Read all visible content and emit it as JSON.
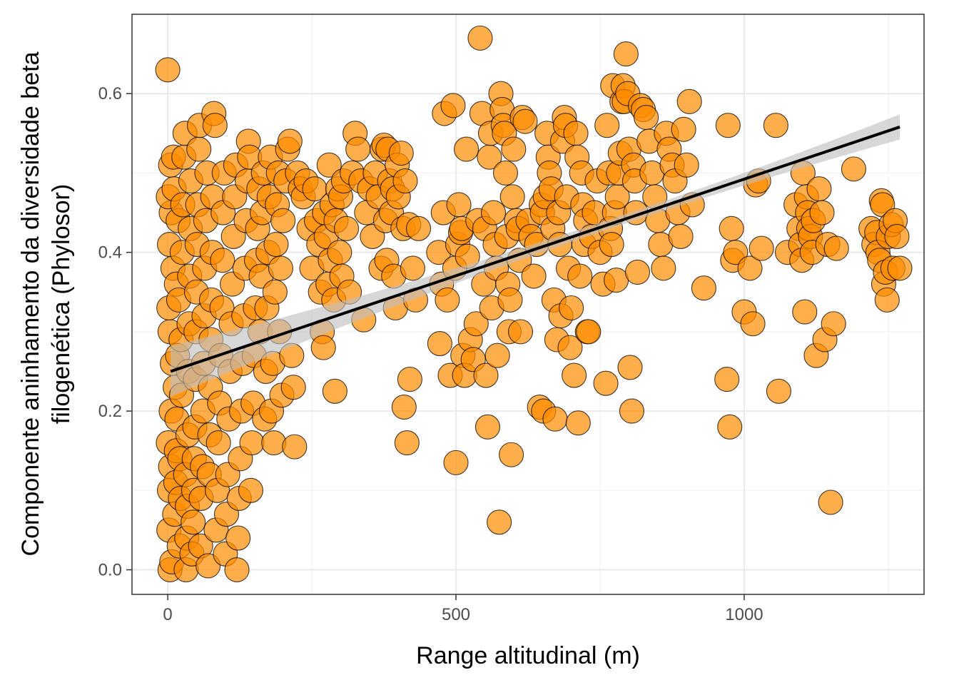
{
  "chart_data": {
    "type": "scatter",
    "title": "",
    "xlabel": "Range altitudinal (m)",
    "ylabel_lines": [
      "Componente aninhamento da diversidade beta",
      "filogenética (Phylosor)"
    ],
    "xlim": [
      -62,
      1312
    ],
    "ylim": [
      -0.031,
      0.7
    ],
    "x_ticks": [
      0,
      500,
      1000
    ],
    "x_tick_labels": [
      "0",
      "500",
      "1000"
    ],
    "y_ticks": [
      0.0,
      0.2,
      0.4,
      0.6
    ],
    "y_tick_labels": [
      "0.0",
      "0.2",
      "0.4",
      "0.6"
    ],
    "grid": true,
    "legend": "none",
    "point_color": "#FF8C00",
    "point_stroke": "#000000",
    "fit_color": "#000000",
    "ci_color": "#bebebe",
    "fit_line": {
      "x": [
        5,
        1270
      ],
      "y": [
        0.25,
        0.558
      ],
      "ci_halfwidth": [
        0.006,
        0.023
      ]
    },
    "points_note_free": true,
    "points": [
      [
        0,
        0.63
      ],
      [
        4,
        0.0
      ],
      [
        7,
        0.01
      ],
      [
        2,
        0.05
      ],
      [
        3,
        0.1
      ],
      [
        1,
        0.16
      ],
      [
        5,
        0.13
      ],
      [
        6,
        0.2
      ],
      [
        8,
        0.26
      ],
      [
        4,
        0.3
      ],
      [
        2,
        0.33
      ],
      [
        9,
        0.38
      ],
      [
        3,
        0.41
      ],
      [
        6,
        0.45
      ],
      [
        1,
        0.47
      ],
      [
        5,
        0.51
      ],
      [
        10,
        0.52
      ],
      [
        12,
        0.07
      ],
      [
        14,
        0.11
      ],
      [
        15,
        0.15
      ],
      [
        16,
        0.19
      ],
      [
        13,
        0.23
      ],
      [
        17,
        0.27
      ],
      [
        15,
        0.36
      ],
      [
        18,
        0.44
      ],
      [
        11,
        0.48
      ],
      [
        20,
        0.03
      ],
      [
        22,
        0.09
      ],
      [
        21,
        0.14
      ],
      [
        24,
        0.22
      ],
      [
        23,
        0.29
      ],
      [
        19,
        0.34
      ],
      [
        25,
        0.4
      ],
      [
        26,
        0.46
      ],
      [
        28,
        0.52
      ],
      [
        30,
        0.55
      ],
      [
        32,
        0.0
      ],
      [
        33,
        0.04
      ],
      [
        34,
        0.08
      ],
      [
        31,
        0.12
      ],
      [
        35,
        0.17
      ],
      [
        36,
        0.25
      ],
      [
        37,
        0.31
      ],
      [
        38,
        0.37
      ],
      [
        39,
        0.43
      ],
      [
        40,
        0.49
      ],
      [
        42,
        0.02
      ],
      [
        44,
        0.06
      ],
      [
        45,
        0.1
      ],
      [
        46,
        0.14
      ],
      [
        47,
        0.18
      ],
      [
        48,
        0.24
      ],
      [
        49,
        0.3
      ],
      [
        50,
        0.35
      ],
      [
        51,
        0.41
      ],
      [
        52,
        0.46
      ],
      [
        54,
        0.53
      ],
      [
        55,
        0.56
      ],
      [
        57,
        0.03
      ],
      [
        58,
        0.09
      ],
      [
        60,
        0.13
      ],
      [
        61,
        0.2
      ],
      [
        62,
        0.26
      ],
      [
        63,
        0.32
      ],
      [
        64,
        0.38
      ],
      [
        66,
        0.44
      ],
      [
        68,
        0.5
      ],
      [
        70,
        0.005
      ],
      [
        72,
        0.12
      ],
      [
        73,
        0.17
      ],
      [
        74,
        0.23
      ],
      [
        75,
        0.29
      ],
      [
        76,
        0.34
      ],
      [
        77,
        0.4
      ],
      [
        78,
        0.47
      ],
      [
        80,
        0.575
      ],
      [
        82,
        0.56
      ],
      [
        84,
        0.05
      ],
      [
        86,
        0.1
      ],
      [
        88,
        0.16
      ],
      [
        90,
        0.21
      ],
      [
        92,
        0.27
      ],
      [
        94,
        0.33
      ],
      [
        95,
        0.39
      ],
      [
        96,
        0.45
      ],
      [
        98,
        0.5
      ],
      [
        100,
        0.02
      ],
      [
        102,
        0.07
      ],
      [
        104,
        0.12
      ],
      [
        106,
        0.19
      ],
      [
        108,
        0.25
      ],
      [
        110,
        0.31
      ],
      [
        112,
        0.36
      ],
      [
        114,
        0.42
      ],
      [
        116,
        0.47
      ],
      [
        118,
        0.51
      ],
      [
        120,
        0.0
      ],
      [
        122,
        0.04
      ],
      [
        124,
        0.09
      ],
      [
        126,
        0.14
      ],
      [
        128,
        0.2
      ],
      [
        130,
        0.26
      ],
      [
        132,
        0.32
      ],
      [
        134,
        0.38
      ],
      [
        136,
        0.44
      ],
      [
        138,
        0.49
      ],
      [
        140,
        0.54
      ],
      [
        142,
        0.52
      ],
      [
        144,
        0.1
      ],
      [
        146,
        0.16
      ],
      [
        148,
        0.21
      ],
      [
        150,
        0.27
      ],
      [
        152,
        0.33
      ],
      [
        154,
        0.39
      ],
      [
        156,
        0.43
      ],
      [
        158,
        0.48
      ],
      [
        160,
        0.3
      ],
      [
        162,
        0.37
      ],
      [
        164,
        0.45
      ],
      [
        166,
        0.5
      ],
      [
        168,
        0.19
      ],
      [
        170,
        0.25
      ],
      [
        172,
        0.33
      ],
      [
        174,
        0.4
      ],
      [
        176,
        0.47
      ],
      [
        178,
        0.52
      ],
      [
        180,
        0.2
      ],
      [
        182,
        0.26
      ],
      [
        184,
        0.16
      ],
      [
        186,
        0.35
      ],
      [
        188,
        0.41
      ],
      [
        190,
        0.46
      ],
      [
        192,
        0.5
      ],
      [
        194,
        0.3
      ],
      [
        196,
        0.38
      ],
      [
        198,
        0.22
      ],
      [
        200,
        0.44
      ],
      [
        205,
        0.49
      ],
      [
        208,
        0.53
      ],
      [
        212,
        0.54
      ],
      [
        215,
        0.27
      ],
      [
        218,
        0.23
      ],
      [
        220,
        0.155
      ],
      [
        225,
        0.5
      ],
      [
        230,
        0.48
      ],
      [
        235,
        0.47
      ],
      [
        240,
        0.49
      ],
      [
        245,
        0.43
      ],
      [
        250,
        0.38
      ],
      [
        255,
        0.48
      ],
      [
        258,
        0.44
      ],
      [
        262,
        0.41
      ],
      [
        265,
        0.35
      ],
      [
        268,
        0.3
      ],
      [
        270,
        0.28
      ],
      [
        272,
        0.45
      ],
      [
        275,
        0.42
      ],
      [
        278,
        0.36
      ],
      [
        280,
        0.51
      ],
      [
        282,
        0.39
      ],
      [
        285,
        0.46
      ],
      [
        288,
        0.34
      ],
      [
        290,
        0.225
      ],
      [
        292,
        0.44
      ],
      [
        295,
        0.48
      ],
      [
        298,
        0.4
      ],
      [
        300,
        0.47
      ],
      [
        302,
        0.37
      ],
      [
        305,
        0.49
      ],
      [
        310,
        0.43
      ],
      [
        315,
        0.35
      ],
      [
        320,
        0.5
      ],
      [
        325,
        0.55
      ],
      [
        330,
        0.53
      ],
      [
        335,
        0.49
      ],
      [
        340,
        0.315
      ],
      [
        345,
        0.45
      ],
      [
        350,
        0.48
      ],
      [
        355,
        0.42
      ],
      [
        360,
        0.5
      ],
      [
        365,
        0.47
      ],
      [
        370,
        0.38
      ],
      [
        372,
        0.53
      ],
      [
        375,
        0.535
      ],
      [
        378,
        0.44
      ],
      [
        380,
        0.39
      ],
      [
        382,
        0.53
      ],
      [
        385,
        0.49
      ],
      [
        388,
        0.45
      ],
      [
        390,
        0.48
      ],
      [
        392,
        0.37
      ],
      [
        395,
        0.33
      ],
      [
        398,
        0.51
      ],
      [
        400,
        0.47
      ],
      [
        405,
        0.525
      ],
      [
        408,
        0.43
      ],
      [
        410,
        0.205
      ],
      [
        412,
        0.49
      ],
      [
        415,
        0.16
      ],
      [
        418,
        0.435
      ],
      [
        420,
        0.24
      ],
      [
        425,
        0.38
      ],
      [
        430,
        0.34
      ],
      [
        435,
        0.43
      ],
      [
        470,
        0.4
      ],
      [
        472,
        0.285
      ],
      [
        475,
        0.36
      ],
      [
        478,
        0.45
      ],
      [
        480,
        0.575
      ],
      [
        485,
        0.34
      ],
      [
        490,
        0.245
      ],
      [
        495,
        0.585
      ],
      [
        498,
        0.38
      ],
      [
        500,
        0.135
      ],
      [
        503,
        0.41
      ],
      [
        505,
        0.46
      ],
      [
        508,
        0.425
      ],
      [
        510,
        0.43
      ],
      [
        512,
        0.27
      ],
      [
        515,
        0.245
      ],
      [
        518,
        0.53
      ],
      [
        520,
        0.395
      ],
      [
        525,
        0.29
      ],
      [
        530,
        0.265
      ],
      [
        535,
        0.31
      ],
      [
        538,
        0.44
      ],
      [
        542,
        0.67
      ],
      [
        545,
        0.575
      ],
      [
        548,
        0.36
      ],
      [
        550,
        0.43
      ],
      [
        552,
        0.245
      ],
      [
        555,
        0.18
      ],
      [
        558,
        0.52
      ],
      [
        560,
        0.55
      ],
      [
        562,
        0.33
      ],
      [
        565,
        0.45
      ],
      [
        568,
        0.41
      ],
      [
        570,
        0.38
      ],
      [
        572,
        0.27
      ],
      [
        575,
        0.06
      ],
      [
        578,
        0.6
      ],
      [
        580,
        0.58
      ],
      [
        582,
        0.56
      ],
      [
        584,
        0.55
      ],
      [
        586,
        0.5
      ],
      [
        588,
        0.42
      ],
      [
        590,
        0.36
      ],
      [
        592,
        0.3
      ],
      [
        594,
        0.34
      ],
      [
        596,
        0.145
      ],
      [
        598,
        0.47
      ],
      [
        600,
        0.53
      ],
      [
        605,
        0.44
      ],
      [
        608,
        0.43
      ],
      [
        610,
        0.39
      ],
      [
        612,
        0.3
      ],
      [
        615,
        0.57
      ],
      [
        620,
        0.565
      ],
      [
        625,
        0.44
      ],
      [
        630,
        0.42
      ],
      [
        635,
        0.37
      ],
      [
        640,
        0.41
      ],
      [
        645,
        0.205
      ],
      [
        648,
        0.46
      ],
      [
        650,
        0.45
      ],
      [
        652,
        0.2
      ],
      [
        655,
        0.47
      ],
      [
        658,
        0.55
      ],
      [
        660,
        0.52
      ],
      [
        662,
        0.5
      ],
      [
        665,
        0.48
      ],
      [
        668,
        0.43
      ],
      [
        670,
        0.34
      ],
      [
        672,
        0.19
      ],
      [
        675,
        0.29
      ],
      [
        678,
        0.45
      ],
      [
        680,
        0.41
      ],
      [
        682,
        0.32
      ],
      [
        685,
        0.54
      ],
      [
        688,
        0.57
      ],
      [
        690,
        0.56
      ],
      [
        692,
        0.47
      ],
      [
        695,
        0.38
      ],
      [
        698,
        0.28
      ],
      [
        700,
        0.33
      ],
      [
        705,
        0.245
      ],
      [
        708,
        0.55
      ],
      [
        710,
        0.52
      ],
      [
        712,
        0.185
      ],
      [
        715,
        0.37
      ],
      [
        718,
        0.5
      ],
      [
        720,
        0.46
      ],
      [
        722,
        0.41
      ],
      [
        725,
        0.44
      ],
      [
        728,
        0.3
      ],
      [
        730,
        0.3
      ],
      [
        735,
        0.42
      ],
      [
        740,
        0.45
      ],
      [
        745,
        0.49
      ],
      [
        750,
        0.4
      ],
      [
        755,
        0.36
      ],
      [
        760,
        0.235
      ],
      [
        762,
        0.56
      ],
      [
        765,
        0.5
      ],
      [
        768,
        0.43
      ],
      [
        770,
        0.41
      ],
      [
        772,
        0.61
      ],
      [
        775,
        0.45
      ],
      [
        778,
        0.365
      ],
      [
        780,
        0.47
      ],
      [
        782,
        0.5
      ],
      [
        785,
        0.525
      ],
      [
        788,
        0.59
      ],
      [
        790,
        0.61
      ],
      [
        792,
        0.59
      ],
      [
        795,
        0.65
      ],
      [
        798,
        0.6
      ],
      [
        800,
        0.53
      ],
      [
        802,
        0.255
      ],
      [
        805,
        0.2
      ],
      [
        808,
        0.51
      ],
      [
        810,
        0.49
      ],
      [
        812,
        0.45
      ],
      [
        815,
        0.375
      ],
      [
        820,
        0.585
      ],
      [
        825,
        0.58
      ],
      [
        830,
        0.57
      ],
      [
        835,
        0.54
      ],
      [
        840,
        0.5
      ],
      [
        845,
        0.47
      ],
      [
        850,
        0.44
      ],
      [
        855,
        0.41
      ],
      [
        860,
        0.38
      ],
      [
        865,
        0.55
      ],
      [
        870,
        0.53
      ],
      [
        875,
        0.51
      ],
      [
        880,
        0.49
      ],
      [
        885,
        0.45
      ],
      [
        890,
        0.42
      ],
      [
        895,
        0.555
      ],
      [
        900,
        0.51
      ],
      [
        905,
        0.59
      ],
      [
        910,
        0.46
      ],
      [
        930,
        0.355
      ],
      [
        970,
        0.24
      ],
      [
        972,
        0.56
      ],
      [
        975,
        0.18
      ],
      [
        978,
        0.43
      ],
      [
        980,
        0.39
      ],
      [
        985,
        0.4
      ],
      [
        1000,
        0.325
      ],
      [
        1010,
        0.38
      ],
      [
        1015,
        0.31
      ],
      [
        1020,
        0.485
      ],
      [
        1025,
        0.49
      ],
      [
        1030,
        0.405
      ],
      [
        1055,
        0.56
      ],
      [
        1060,
        0.225
      ],
      [
        1075,
        0.4
      ],
      [
        1090,
        0.46
      ],
      [
        1095,
        0.43
      ],
      [
        1098,
        0.41
      ],
      [
        1100,
        0.39
      ],
      [
        1102,
        0.5
      ],
      [
        1105,
        0.325
      ],
      [
        1108,
        0.47
      ],
      [
        1110,
        0.45
      ],
      [
        1112,
        0.43
      ],
      [
        1115,
        0.42
      ],
      [
        1118,
        0.4
      ],
      [
        1120,
        0.44
      ],
      [
        1125,
        0.27
      ],
      [
        1130,
        0.48
      ],
      [
        1135,
        0.45
      ],
      [
        1140,
        0.29
      ],
      [
        1145,
        0.41
      ],
      [
        1150,
        0.085
      ],
      [
        1155,
        0.31
      ],
      [
        1160,
        0.405
      ],
      [
        1190,
        0.505
      ],
      [
        1220,
        0.43
      ],
      [
        1225,
        0.41
      ],
      [
        1230,
        0.425
      ],
      [
        1232,
        0.4
      ],
      [
        1235,
        0.39
      ],
      [
        1238,
        0.465
      ],
      [
        1240,
        0.46
      ],
      [
        1242,
        0.36
      ],
      [
        1245,
        0.375
      ],
      [
        1248,
        0.34
      ],
      [
        1250,
        0.42
      ],
      [
        1255,
        0.435
      ],
      [
        1258,
        0.38
      ],
      [
        1262,
        0.44
      ],
      [
        1265,
        0.42
      ],
      [
        1270,
        0.38
      ]
    ]
  }
}
